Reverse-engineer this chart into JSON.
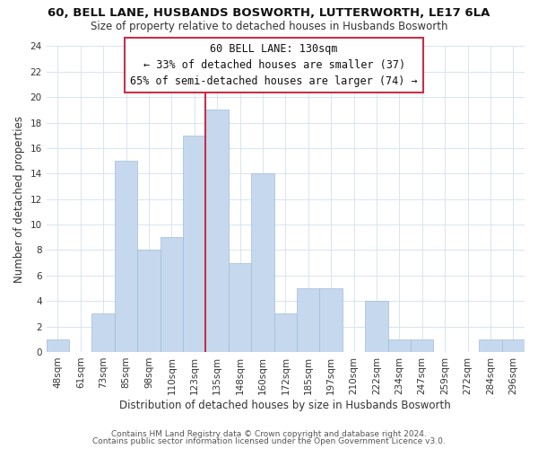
{
  "title_line1": "60, BELL LANE, HUSBANDS BOSWORTH, LUTTERWORTH, LE17 6LA",
  "title_line2": "Size of property relative to detached houses in Husbands Bosworth",
  "xlabel": "Distribution of detached houses by size in Husbands Bosworth",
  "ylabel": "Number of detached properties",
  "bin_labels": [
    "48sqm",
    "61sqm",
    "73sqm",
    "85sqm",
    "98sqm",
    "110sqm",
    "123sqm",
    "135sqm",
    "148sqm",
    "160sqm",
    "172sqm",
    "185sqm",
    "197sqm",
    "210sqm",
    "222sqm",
    "234sqm",
    "247sqm",
    "259sqm",
    "272sqm",
    "284sqm",
    "296sqm"
  ],
  "bar_values": [
    1,
    0,
    3,
    15,
    8,
    9,
    17,
    19,
    7,
    14,
    3,
    5,
    5,
    0,
    4,
    1,
    1,
    0,
    0,
    1,
    1
  ],
  "highlight_bin_index": 7,
  "bar_color_normal": "#c5d8ed",
  "bar_edge_color": "#a0bcd8",
  "highlight_line_color": "#c5304a",
  "ylim": [
    0,
    24
  ],
  "yticks": [
    0,
    2,
    4,
    6,
    8,
    10,
    12,
    14,
    16,
    18,
    20,
    22,
    24
  ],
  "annotation_title": "60 BELL LANE: 130sqm",
  "annotation_line1": "← 33% of detached houses are smaller (37)",
  "annotation_line2": "65% of semi-detached houses are larger (74) →",
  "annotation_box_facecolor": "#ffffff",
  "annotation_box_edgecolor": "#c5304a",
  "footer_line1": "Contains HM Land Registry data © Crown copyright and database right 2024.",
  "footer_line2": "Contains public sector information licensed under the Open Government Licence v3.0.",
  "grid_color": "#d8e4f0",
  "background_color": "#ffffff",
  "title1_fontsize": 9.5,
  "title2_fontsize": 8.5,
  "xlabel_fontsize": 8.5,
  "ylabel_fontsize": 8.5,
  "tick_fontsize": 7.5,
  "footer_fontsize": 6.5,
  "ann_fontsize": 8.5
}
